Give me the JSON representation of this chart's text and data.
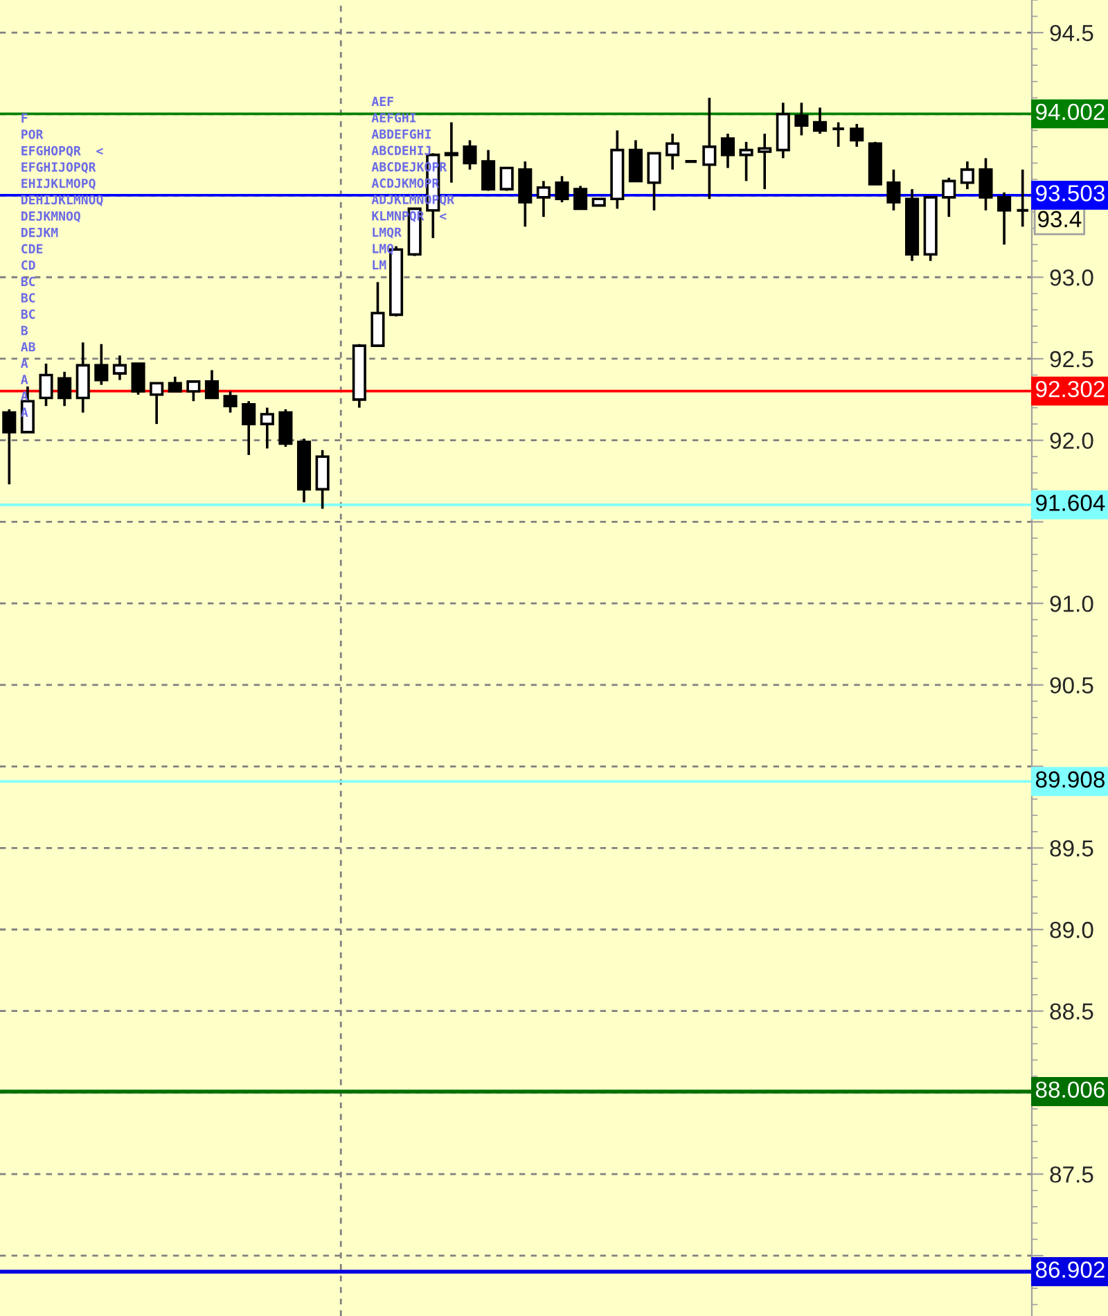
{
  "chart_data": {
    "type": "candlestick",
    "categories": [
      null,
      null,
      null,
      null,
      null,
      null,
      null,
      null,
      null,
      null,
      null,
      null,
      null,
      null,
      null,
      null,
      null,
      null,
      null,
      null,
      null,
      null,
      null,
      null,
      null,
      null,
      null,
      null,
      null,
      null,
      null,
      null,
      null,
      null,
      null,
      null,
      null,
      null,
      null,
      null,
      null,
      null,
      null,
      null,
      null,
      null,
      null,
      null,
      null,
      null,
      null,
      null,
      null,
      null,
      null,
      null
    ],
    "ohlc": [
      [
        92.17,
        92.19,
        91.73,
        92.05
      ],
      [
        92.05,
        92.33,
        92.05,
        92.24
      ],
      [
        92.26,
        92.47,
        92.21,
        92.4
      ],
      [
        92.38,
        92.42,
        92.21,
        92.26
      ],
      [
        92.26,
        92.6,
        92.17,
        92.46
      ],
      [
        92.46,
        92.59,
        92.34,
        92.37
      ],
      [
        92.41,
        92.52,
        92.37,
        92.46
      ],
      [
        92.47,
        92.47,
        92.28,
        92.3
      ],
      [
        92.28,
        92.35,
        92.1,
        92.35
      ],
      [
        92.35,
        92.39,
        92.3,
        92.3
      ],
      [
        92.3,
        92.36,
        92.24,
        92.36
      ],
      [
        92.36,
        92.43,
        92.26,
        92.26
      ],
      [
        92.27,
        92.3,
        92.17,
        92.21
      ],
      [
        92.22,
        92.24,
        91.91,
        92.1
      ],
      [
        92.1,
        92.2,
        91.95,
        92.16
      ],
      [
        92.17,
        92.19,
        91.96,
        91.98
      ],
      [
        91.99,
        92.01,
        91.62,
        91.7
      ],
      [
        91.7,
        91.94,
        91.58,
        91.9
      ],
      null,
      [
        92.25,
        92.59,
        92.2,
        92.58
      ],
      [
        92.58,
        92.97,
        92.58,
        92.78
      ],
      [
        92.77,
        93.19,
        92.76,
        93.17
      ],
      [
        93.14,
        93.42,
        93.13,
        93.42
      ],
      [
        93.41,
        93.76,
        93.24,
        93.75
      ],
      [
        93.75,
        93.95,
        93.58,
        93.76
      ],
      [
        93.8,
        93.84,
        93.66,
        93.7
      ],
      [
        93.71,
        93.78,
        93.53,
        93.54
      ],
      [
        93.54,
        93.67,
        93.53,
        93.67
      ],
      [
        93.66,
        93.71,
        93.31,
        93.46
      ],
      [
        93.49,
        93.59,
        93.37,
        93.55
      ],
      [
        93.58,
        93.62,
        93.46,
        93.48
      ],
      [
        93.54,
        93.56,
        93.42,
        93.42
      ],
      [
        93.44,
        93.48,
        93.44,
        93.48
      ],
      [
        93.48,
        93.9,
        93.42,
        93.78
      ],
      [
        93.78,
        93.84,
        93.59,
        93.59
      ],
      [
        93.58,
        93.76,
        93.41,
        93.76
      ],
      [
        93.75,
        93.88,
        93.66,
        93.82
      ],
      [
        93.71,
        93.71,
        93.71,
        93.71
      ],
      [
        93.69,
        94.1,
        93.48,
        93.8
      ],
      [
        93.85,
        93.88,
        93.67,
        93.75
      ],
      [
        93.75,
        93.83,
        93.59,
        93.78
      ],
      [
        93.77,
        93.88,
        93.54,
        93.79
      ],
      [
        93.78,
        94.07,
        93.73,
        94.0
      ],
      [
        93.99,
        94.07,
        93.87,
        93.93
      ],
      [
        93.95,
        94.04,
        93.88,
        93.9
      ],
      [
        93.91,
        93.95,
        93.8,
        93.91
      ],
      [
        93.91,
        93.94,
        93.8,
        93.84
      ],
      [
        93.82,
        93.83,
        93.57,
        93.57
      ],
      [
        93.58,
        93.66,
        93.41,
        93.46
      ],
      [
        93.48,
        93.54,
        93.1,
        93.14
      ],
      [
        93.14,
        93.49,
        93.1,
        93.49
      ],
      [
        93.49,
        93.61,
        93.37,
        93.59
      ],
      [
        93.58,
        93.71,
        93.54,
        93.66
      ],
      [
        93.66,
        93.73,
        93.41,
        93.49
      ],
      [
        93.49,
        93.52,
        93.2,
        93.41
      ],
      [
        93.41,
        93.66,
        93.31,
        93.41
      ]
    ],
    "ylim": [
      86.63,
      94.7
    ],
    "yticks": [
      {
        "value": 87,
        "label": null
      },
      87.5,
      {
        "value": 88,
        "label": null
      },
      88.5,
      {
        "value": 89,
        "label": "89.0"
      },
      89.5,
      {
        "value": 90,
        "label": null
      },
      90.5,
      {
        "value": 91,
        "label": "91.0"
      },
      {
        "value": 91.5,
        "label": null
      },
      {
        "value": 92,
        "label": "92.0"
      },
      92.5,
      {
        "value": 93,
        "label": "93.0"
      },
      {
        "value": 93.5,
        "label": null
      },
      {
        "value": 94,
        "label": null
      },
      94.5
    ],
    "tick_labels": "y",
    "grid": "y",
    "ref_lines": [
      {
        "axis": "y",
        "value": 94.002,
        "label": "94.002",
        "color": "#008000"
      },
      {
        "axis": "y",
        "value": 93.503,
        "label": "93.503",
        "color": "#0000ff"
      },
      {
        "axis": "y",
        "value": 92.302,
        "label": "92.302",
        "color": "#ff0000"
      },
      {
        "axis": "y",
        "value": 91.604,
        "label": "91.604",
        "color": "#80ffff"
      },
      {
        "axis": "y",
        "value": 89.908,
        "label": "89.908",
        "color": "#80ffff"
      },
      {
        "axis": "y",
        "value": 88.006,
        "label": "88.006",
        "color": "#007000"
      },
      {
        "axis": "y",
        "value": 86.902,
        "label": "86.902",
        "color": "#0000e0"
      }
    ],
    "annotations": [
      "93.4",
      "F",
      "POR",
      "EFGHOPQR  <",
      "EFGHIJOPQR",
      "EHIJKLMOPQ",
      "DEHIJKLMNOQ",
      "DEJKMNOQ",
      "DEJKM",
      "CDE",
      "CD",
      "BC",
      "BC",
      "BC",
      "B",
      "AB",
      "A",
      "A",
      "A",
      "A",
      "AEF",
      "AEFGHI",
      "ABDEFGHI",
      "ABCDEHIJ",
      "ABCDEJKOPR",
      "ACDJKMOPR",
      "ADJKLMNOPQR",
      "KLMNPQR  <",
      "LMQR",
      "LMQ",
      "LM"
    ]
  }
}
